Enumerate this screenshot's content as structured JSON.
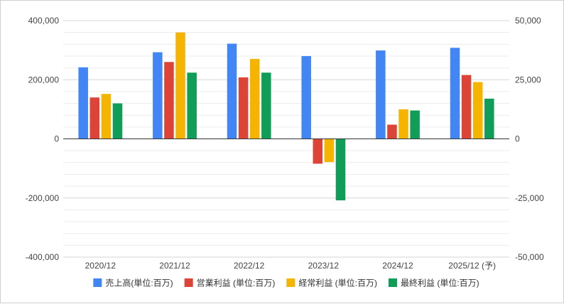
{
  "chart_data": {
    "type": "bar",
    "categories": [
      "2020/12",
      "2021/12",
      "2022/12",
      "2023/12",
      "2024/12",
      "2025/12 (予)"
    ],
    "series": [
      {
        "name": "売上高(単位:百万)",
        "axis": "left",
        "color": "#4285f4",
        "values": [
          242000,
          293000,
          322000,
          280000,
          299000,
          308000
        ]
      },
      {
        "name": "営業利益 (単位:百万)",
        "axis": "right",
        "color": "#db4437",
        "values": [
          17500,
          32500,
          26000,
          -10500,
          6000,
          27000
        ]
      },
      {
        "name": "経常利益 (単位:百万)",
        "axis": "right",
        "color": "#f4b400",
        "values": [
          19000,
          45000,
          33800,
          -9800,
          12500,
          24000
        ]
      },
      {
        "name": "最終利益 (単位:百万)",
        "axis": "right",
        "color": "#0f9d58",
        "values": [
          15000,
          28000,
          28000,
          -26000,
          12000,
          17000
        ]
      }
    ],
    "y_left": {
      "range": [
        -400000,
        400000
      ],
      "ticks": [
        "400,000",
        "200,000",
        "0",
        "-200,000",
        "-400,000"
      ],
      "tick_values": [
        400000,
        200000,
        0,
        -200000,
        -400000
      ]
    },
    "y_right": {
      "range": [
        -50000,
        50000
      ],
      "ticks": [
        "50,000",
        "25,000",
        "0",
        "-25,000",
        "-50,000"
      ],
      "tick_values": [
        50000,
        25000,
        0,
        -25000,
        -50000
      ]
    },
    "grid": true,
    "legend_position": "bottom"
  }
}
